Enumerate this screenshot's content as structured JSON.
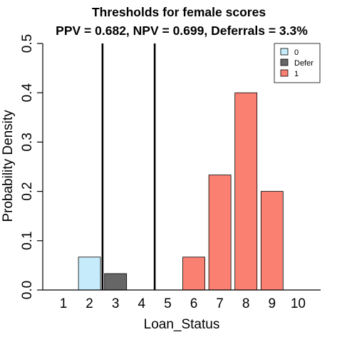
{
  "chart_data": {
    "type": "bar",
    "title": "Thresholds for female scores",
    "subtitle": "PPV = 0.682, NPV = 0.699,  Deferrals = 3.3%",
    "xlabel": "Loan_Status",
    "ylabel": "Probability Density",
    "categories": [
      "1",
      "2",
      "3",
      "4",
      "5",
      "6",
      "7",
      "8",
      "9",
      "10"
    ],
    "ylim": [
      0,
      0.5
    ],
    "yticks": [
      "0.0",
      "0.1",
      "0.2",
      "0.3",
      "0.4",
      "0.5"
    ],
    "series": [
      {
        "name": "0",
        "color": "#c6ecfb",
        "values": [
          0,
          0.0667,
          0,
          0,
          0,
          0,
          0,
          0,
          0,
          0
        ]
      },
      {
        "name": "Defer",
        "color": "#666666",
        "values": [
          0,
          0,
          0.0333,
          0,
          0,
          0,
          0,
          0,
          0,
          0
        ]
      },
      {
        "name": "1",
        "color": "#fa8072",
        "values": [
          0,
          0,
          0,
          0,
          0,
          0.0667,
          0.2333,
          0.4,
          0.2,
          0
        ]
      }
    ],
    "thresholds": [
      2.5,
      4.5
    ],
    "legend": "top-right",
    "grid": false
  }
}
